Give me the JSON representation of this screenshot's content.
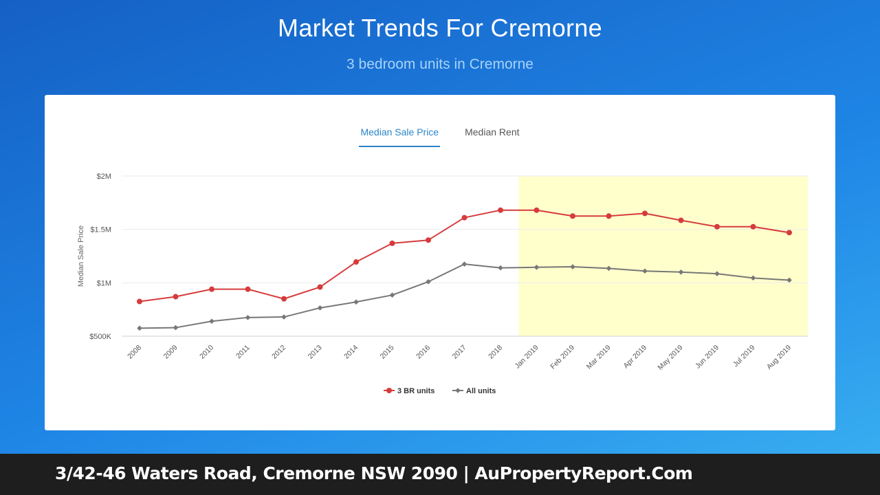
{
  "header": {
    "title": "Market Trends For Cremorne",
    "subtitle": "3 bedroom units in Cremorne"
  },
  "tabs": [
    {
      "label": "Median Sale Price",
      "active": true
    },
    {
      "label": "Median Rent",
      "active": false
    }
  ],
  "colors": {
    "series_3br": "#d63b3b",
    "series_all": "#777777",
    "highlight": "#ffffcc",
    "tab_active": "#2b86c9"
  },
  "chart_data": {
    "type": "line",
    "title": "",
    "xlabel": "",
    "ylabel": "Median Sale Price",
    "ylim": [
      500000,
      2000000
    ],
    "y_ticks": [
      {
        "value": 500000,
        "label": "$500K"
      },
      {
        "value": 1000000,
        "label": "$1M"
      },
      {
        "value": 1500000,
        "label": "$1.5M"
      },
      {
        "value": 2000000,
        "label": "$2M"
      }
    ],
    "categories": [
      "2008",
      "2009",
      "2010",
      "2011",
      "2012",
      "2013",
      "2014",
      "2015",
      "2016",
      "2017",
      "2018",
      "Jan 2019",
      "Feb 2019",
      "Mar 2019",
      "Apr 2019",
      "May 2019",
      "Jun 2019",
      "Jul 2019",
      "Aug 2019"
    ],
    "highlight_range": [
      "Jan 2019",
      "Aug 2019"
    ],
    "legend_position": "bottom",
    "grid": true,
    "series": [
      {
        "name": "3 BR units",
        "marker": "circle",
        "values": [
          825000,
          870000,
          940000,
          940000,
          850000,
          960000,
          1195000,
          1370000,
          1400000,
          1610000,
          1680000,
          1680000,
          1625000,
          1625000,
          1650000,
          1585000,
          1525000,
          1525000,
          1470000
        ]
      },
      {
        "name": "All units",
        "marker": "diamond",
        "values": [
          575000,
          580000,
          640000,
          675000,
          680000,
          765000,
          820000,
          885000,
          1010000,
          1175000,
          1140000,
          1145000,
          1150000,
          1135000,
          1110000,
          1100000,
          1085000,
          1045000,
          1025000
        ]
      }
    ]
  },
  "footer": {
    "address": "3/42-46 Waters Road, Cremorne NSW 2090 | AuPropertyReport.Com"
  }
}
